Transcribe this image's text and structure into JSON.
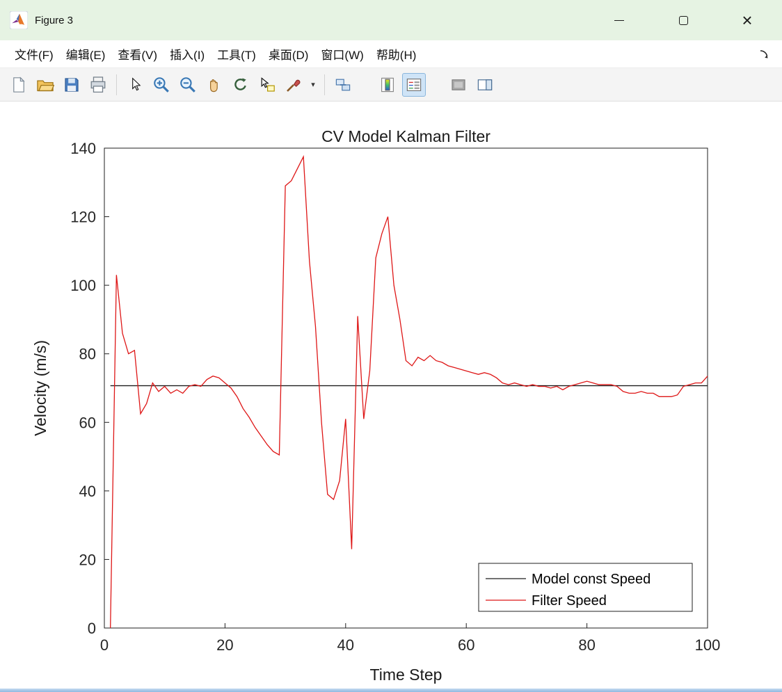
{
  "window": {
    "title": "Figure 3",
    "app_icon": "matlab-logo",
    "controls": {
      "minimize": "minimize",
      "maximize": "maximize",
      "close": "close"
    }
  },
  "menu": {
    "items": [
      "文件(F)",
      "编辑(E)",
      "查看(V)",
      "插入(I)",
      "工具(T)",
      "桌面(D)",
      "窗口(W)",
      "帮助(H)"
    ],
    "dock_icon": "dock-arrow"
  },
  "toolbar": {
    "icons": [
      "new-figure",
      "open-file",
      "save-figure",
      "print-figure",
      "edit-plot-pointer",
      "zoom-in",
      "zoom-out",
      "pan",
      "rotate-3d",
      "data-cursor",
      "brush-data",
      "brush-dropdown",
      "link-plot",
      "insert-colorbar",
      "insert-legend",
      "hide-plot-tools",
      "show-plot-tools"
    ],
    "active_icon": "insert-legend"
  },
  "colors": {
    "titlebar_bg": "#e6f3e3",
    "axes_stroke": "#1f1f1f",
    "tick_label": "#262626",
    "filter_red": "#de1616",
    "model_black": "#1f1f1f",
    "legend_active_bg": "#cfe4f7",
    "legend_active_border": "#8ab6dc"
  },
  "chart_data": {
    "type": "line",
    "title": "CV Model Kalman Filter",
    "xlabel": "Time Step",
    "ylabel": "Velocity (m/s)",
    "xlim": [
      0,
      100
    ],
    "ylim": [
      0,
      140
    ],
    "xticks": [
      0,
      20,
      40,
      60,
      80,
      100
    ],
    "yticks": [
      0,
      20,
      40,
      60,
      80,
      100,
      120,
      140
    ],
    "grid": false,
    "legend_position": "southeast",
    "x_start": 1,
    "x_step": 1,
    "series": [
      {
        "name": "Model const Speed",
        "color": "#1f1f1f",
        "constant": 70.7
      },
      {
        "name": "Filter Speed",
        "color": "#de1616",
        "values": [
          0,
          103,
          86,
          80,
          81,
          62.5,
          65.5,
          71.5,
          69,
          70.5,
          68.5,
          69.5,
          68.5,
          70.5,
          71,
          70.5,
          72.5,
          73.5,
          73,
          71.5,
          70,
          67.5,
          64,
          61.5,
          58.5,
          56,
          53.5,
          51.5,
          50.5,
          129,
          130.5,
          134,
          137.5,
          107,
          88,
          60,
          39,
          37.5,
          43,
          61,
          23,
          91,
          61,
          75,
          108,
          115,
          120,
          100,
          90,
          78,
          76.5,
          79,
          78,
          79.5,
          78,
          77.5,
          76.5,
          76,
          75.5,
          75,
          74.5,
          74,
          74.5,
          74,
          73,
          71.5,
          71,
          71.5,
          71,
          70.5,
          71,
          70.5,
          70.5,
          70,
          70.5,
          69.5,
          70.5,
          71,
          71.5,
          72,
          71.5,
          71,
          71,
          71,
          70.5,
          69,
          68.5,
          68.5,
          69,
          68.5,
          68.5,
          67.5,
          67.5,
          67.5,
          68,
          70.5,
          71,
          71.5,
          71.5,
          73.5
        ]
      }
    ]
  }
}
